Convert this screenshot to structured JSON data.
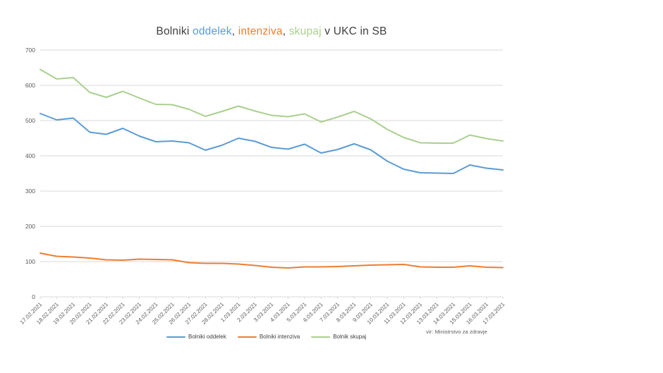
{
  "title": {
    "full_text": "Bolniki oddelek, intenziva, skupaj v UKC in SB",
    "parts": [
      {
        "text": "Bolniki ",
        "color": "#3f3f3f"
      },
      {
        "text": "oddelek",
        "color": "#5B9BD5"
      },
      {
        "text": ", ",
        "color": "#3f3f3f"
      },
      {
        "text": "intenziva",
        "color": "#ED7D31"
      },
      {
        "text": ", ",
        "color": "#3f3f3f"
      },
      {
        "text": "skupaj",
        "color": "#A9D08E"
      },
      {
        "text": " v UKC in SB",
        "color": "#3f3f3f"
      }
    ]
  },
  "source_note": "vir: Ministrstvo za zdravje",
  "legend": [
    {
      "label": "Bolniki oddelek",
      "color": "#5B9BD5"
    },
    {
      "label": "Bolniki intenziva",
      "color": "#ED7D31"
    },
    {
      "label": "Bolnik skupaj",
      "color": "#A9D08E"
    }
  ],
  "colors": {
    "grid": "#D9D9D9",
    "axis_text": "#595959",
    "series_blue": "#5B9BD5",
    "series_orange": "#ED7D31",
    "series_green": "#A9D08E"
  },
  "chart_data": {
    "type": "line",
    "title": "Bolniki oddelek, intenziva, skupaj v UKC in SB",
    "xlabel": "",
    "ylabel": "",
    "ylim": [
      0,
      700
    ],
    "ytick_step": 100,
    "yticks": [
      0,
      100,
      200,
      300,
      400,
      500,
      600,
      700
    ],
    "grid": true,
    "legend_position": "bottom",
    "categories": [
      "17.02.2021",
      "18.02.2021",
      "19.02.2021",
      "20.02.2021",
      "21.02.2021",
      "22.02.2021",
      "23.02.2021",
      "24.02.2021",
      "25.02.2021",
      "26.02.2021",
      "27.02.2021",
      "28.02.2021",
      "1.03.2021",
      "2.03.2021",
      "3.03.2021",
      "4.03.2021",
      "5.03.2021",
      "6.03.2021",
      "7.03.2021",
      "8.03.2021",
      "9.03.2021",
      "10.03.2021",
      "11.03.2021",
      "12.03.2021",
      "13.03.2021",
      "14.03.2021",
      "15.03.2021",
      "16.03.2021",
      "17.03.2021"
    ],
    "series": [
      {
        "name": "Bolniki oddelek",
        "color": "#5B9BD5",
        "values": [
          520,
          502,
          507,
          467,
          461,
          478,
          456,
          440,
          442,
          437,
          416,
          430,
          450,
          441,
          424,
          419,
          433,
          408,
          418,
          434,
          417,
          385,
          362,
          352,
          351,
          350,
          374,
          365,
          360
        ]
      },
      {
        "name": "Bolniki intenziva",
        "color": "#ED7D31",
        "values": [
          124,
          115,
          113,
          110,
          105,
          104,
          107,
          106,
          105,
          97,
          95,
          95,
          93,
          89,
          84,
          82,
          85,
          85,
          86,
          88,
          90,
          91,
          92,
          85,
          84,
          84,
          88,
          84,
          83
        ]
      },
      {
        "name": "Bolnik skupaj",
        "color": "#A9D08E",
        "values": [
          645,
          618,
          622,
          580,
          566,
          583,
          564,
          546,
          545,
          532,
          512,
          526,
          541,
          527,
          515,
          511,
          519,
          496,
          510,
          526,
          505,
          475,
          452,
          437,
          436,
          436,
          459,
          449,
          442
        ]
      }
    ]
  }
}
